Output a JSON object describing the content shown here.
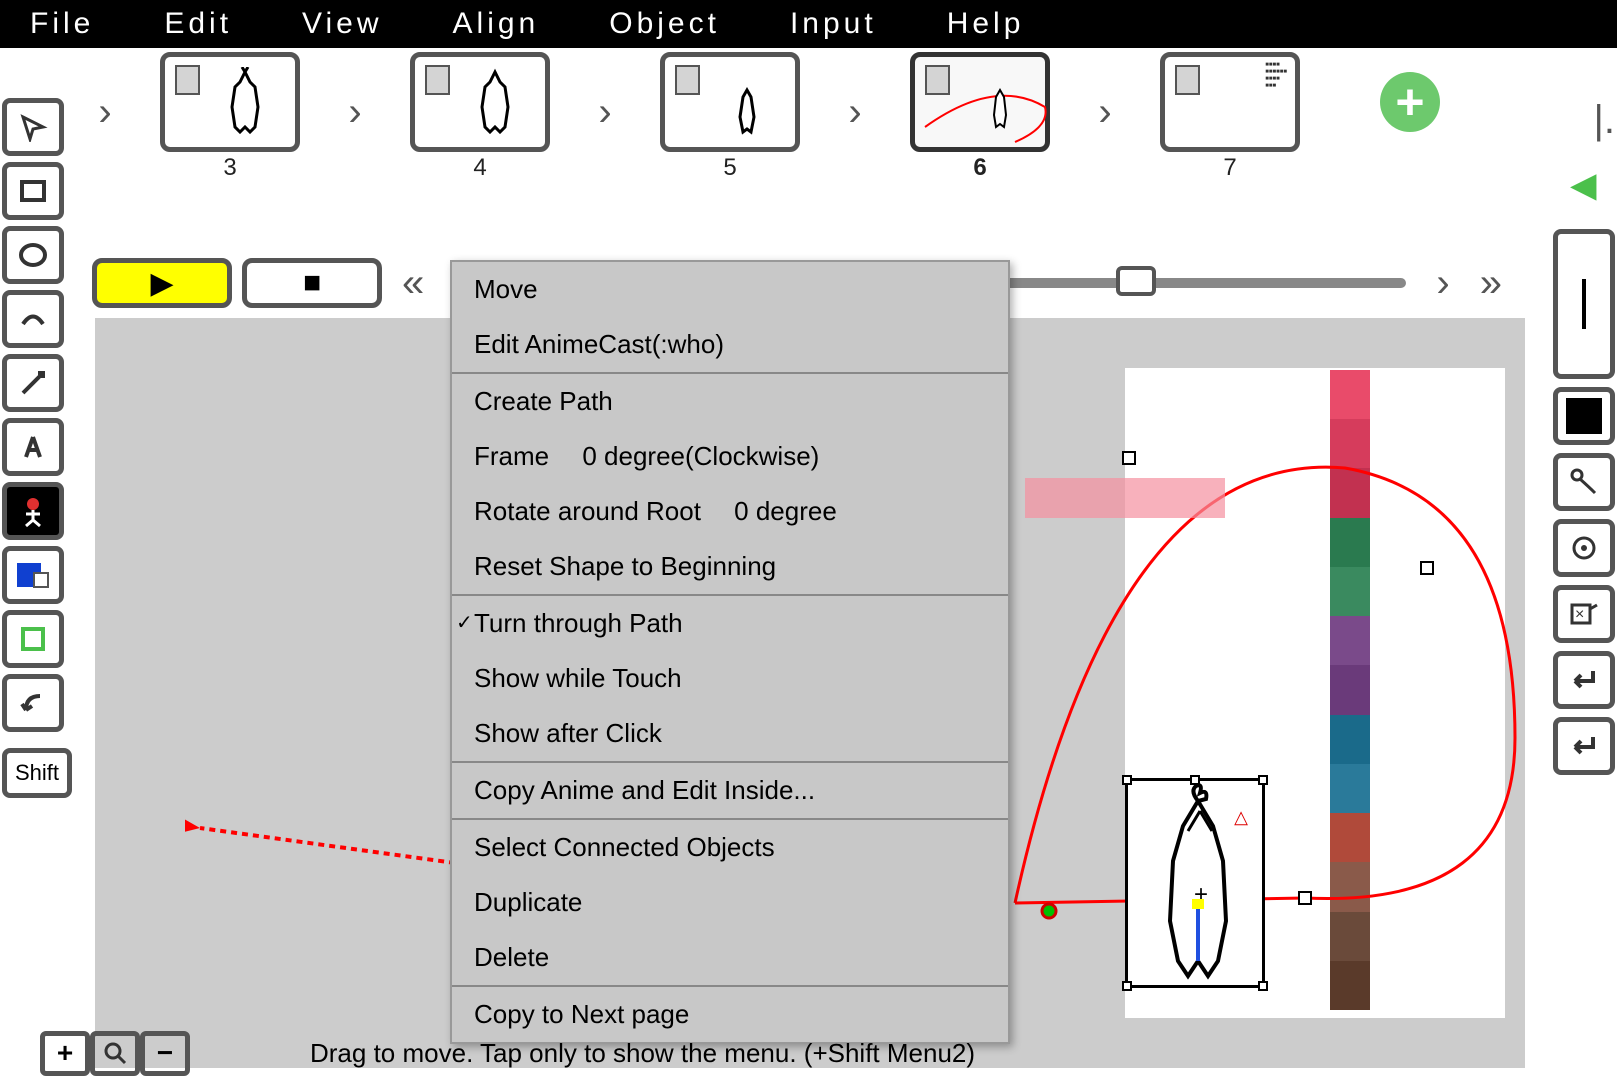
{
  "menubar": {
    "file": "File",
    "edit": "Edit",
    "view": "View",
    "align": "Align",
    "object": "Object",
    "input": "Input",
    "help": "Help"
  },
  "thumbs": [
    {
      "num": "3"
    },
    {
      "num": "4"
    },
    {
      "num": "5"
    },
    {
      "num": "6",
      "active": true
    },
    {
      "num": "7"
    }
  ],
  "context_menu": {
    "items": [
      {
        "label": "Move"
      },
      {
        "label": "Edit AnimeCast(:who)"
      },
      {
        "sep": true
      },
      {
        "label": "Create Path"
      },
      {
        "label": "Frame  0 degree(Clockwise)"
      },
      {
        "label": "Rotate around Root  0 degree"
      },
      {
        "label": "Reset Shape to Beginning"
      },
      {
        "sep": true
      },
      {
        "label": "Turn through Path",
        "checked": true
      },
      {
        "label": "Show while Touch"
      },
      {
        "label": "Show after Click"
      },
      {
        "sep": true
      },
      {
        "label": "Copy Anime and Edit Inside..."
      },
      {
        "sep": true
      },
      {
        "label": "Select Connected Objects"
      },
      {
        "label": "Duplicate"
      },
      {
        "label": "Delete"
      },
      {
        "sep": true
      },
      {
        "label": "Copy to Next page"
      }
    ]
  },
  "status": {
    "text": "Drag to move. Tap only to show the menu. (+Shift Menu2)"
  },
  "shift_label": "Shift",
  "color_strip": [
    "#e94b6a",
    "#d63c5c",
    "#c23150",
    "#2a7a4f",
    "#3a8a5f",
    "#7a4a8a",
    "#6a3a7a",
    "#1a6a8a",
    "#2a7a9a",
    "#b04a3a",
    "#8a5a4a",
    "#6a4a3a",
    "#5a3a2a"
  ],
  "colors": {
    "play_bg": "#ffff00",
    "add_bg": "#6dc96d",
    "red": "#ff0000",
    "canvas_bg": "#cccccc"
  }
}
